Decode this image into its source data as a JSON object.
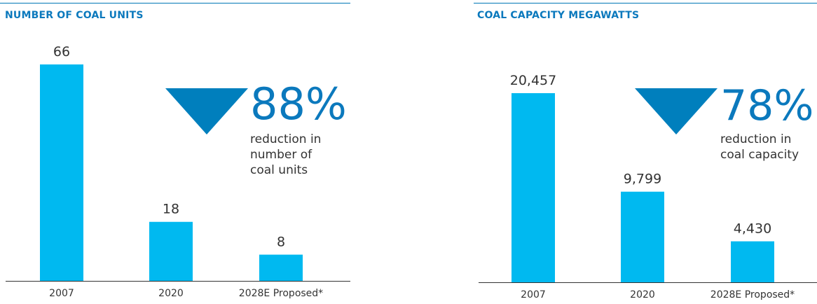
{
  "chart_data": [
    {
      "type": "bar",
      "title": "NUMBER OF COAL UNITS",
      "categories": [
        "2007",
        "2020",
        "2028E Proposed*"
      ],
      "values": [
        66,
        18,
        8
      ],
      "value_labels": [
        "66",
        "18",
        "8"
      ],
      "ylim": [
        0,
        66
      ],
      "callout": {
        "percent": "88%",
        "text": "reduction in\nnumber of\ncoal units"
      }
    },
    {
      "type": "bar",
      "title": "COAL CAPACITY MEGAWATTS",
      "categories": [
        "2007",
        "2020",
        "2028E Proposed*"
      ],
      "values": [
        20457,
        9799,
        4430
      ],
      "value_labels": [
        "20,457",
        "9,799",
        "4,430"
      ],
      "ylim": [
        0,
        20457
      ],
      "callout": {
        "percent": "78%",
        "text": "reduction in\ncoal capacity"
      }
    }
  ],
  "colors": {
    "bar": "#00b9f0",
    "title": "#0b79bd",
    "triangle": "#007fbd",
    "text": "#333333"
  }
}
